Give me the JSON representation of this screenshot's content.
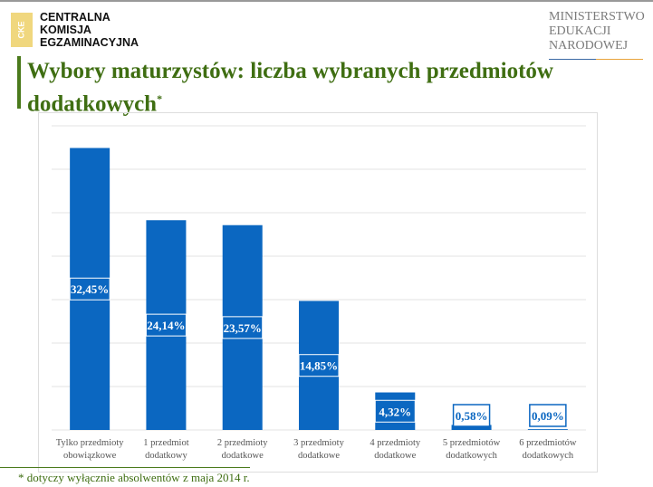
{
  "header": {
    "logo_mark": "CKE",
    "org_lines": [
      "CENTRALNA",
      "KOMISJA",
      "EGZAMINACYJNA"
    ],
    "ministry_lines": [
      "MINISTERSTWO",
      "EDUKACJI",
      "NARODOWEJ"
    ]
  },
  "title": "Wybory maturzystów: liczba wybranych przedmiotów dodatkowych",
  "title_mark": "*",
  "footnote": "* dotyczy wyłącznie absolwentów z maja 2014 r.",
  "colors": {
    "bar": "#0b67c1",
    "title": "#3f6e12"
  },
  "chart_data": {
    "type": "bar",
    "categories": [
      [
        "Tylko przedmioty",
        "obowiązkowe"
      ],
      [
        "1 przedmiot",
        "dodatkowy"
      ],
      [
        "2 przedmioty",
        "dodatkowe"
      ],
      [
        "3 przedmioty",
        "dodatkowe"
      ],
      [
        "4 przedmioty",
        "dodatkowe"
      ],
      [
        "5 przedmiotów",
        "dodatkowych"
      ],
      [
        "6 przedmiotów",
        "dodatkowych"
      ]
    ],
    "values": [
      32.45,
      24.14,
      23.57,
      14.85,
      4.32,
      0.58,
      0.09
    ],
    "labels": [
      "32,45%",
      "24,14%",
      "23,57%",
      "14,85%",
      "4,32%",
      "0,58%",
      "0,09%"
    ],
    "ylim": [
      0,
      35
    ],
    "grid_step": 5,
    "grid": true,
    "xlabel": "",
    "ylabel": ""
  }
}
